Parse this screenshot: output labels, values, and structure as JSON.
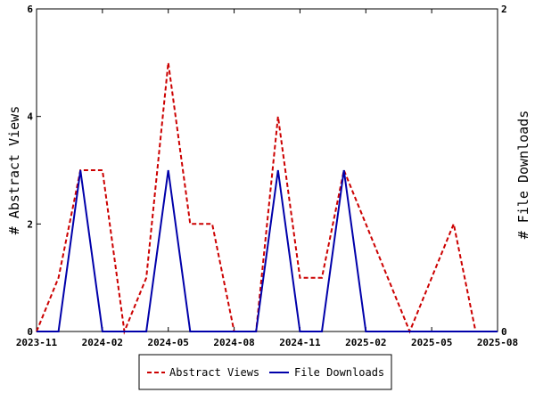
{
  "chart_data": {
    "type": "line",
    "xlabel": "",
    "ylabel_left": "# Abstract Views",
    "ylabel_right": "# File Downloads",
    "x_tick_labels": [
      "2023-11",
      "2024-02",
      "2024-05",
      "2024-08",
      "2024-11",
      "2025-02",
      "2025-05",
      "2025-08"
    ],
    "x": [
      "2023-11",
      "2023-12",
      "2024-01",
      "2024-02",
      "2024-03",
      "2024-04",
      "2024-05",
      "2024-06",
      "2024-07",
      "2024-08",
      "2024-09",
      "2024-10",
      "2024-11",
      "2024-12",
      "2025-01",
      "2025-02",
      "2025-03",
      "2025-04",
      "2025-05",
      "2025-06",
      "2025-07",
      "2025-08"
    ],
    "xlim": [
      "2023-11",
      "2025-08"
    ],
    "y_left": {
      "ylim": [
        0,
        6
      ],
      "ticks": [
        "0",
        "2",
        "4",
        "6"
      ]
    },
    "y_right": {
      "ylim": [
        0,
        2
      ],
      "ticks": [
        "0",
        "2"
      ]
    },
    "grid": false,
    "legend_position": "bottom",
    "series": [
      {
        "name": "Abstract Views",
        "axis": "left",
        "color": "#cc0000",
        "style": "dashed",
        "values": [
          0,
          1,
          3,
          3,
          0,
          1,
          5,
          2,
          2,
          0,
          0,
          4,
          1,
          1,
          3,
          2,
          1,
          0,
          1,
          2,
          0,
          0
        ]
      },
      {
        "name": "File Downloads",
        "axis": "left",
        "color": "#0000aa",
        "style": "solid",
        "values": [
          0,
          0,
          3,
          0,
          0,
          0,
          3,
          0,
          0,
          0,
          0,
          3,
          0,
          0,
          3,
          0,
          0,
          0,
          0,
          0,
          0,
          0
        ]
      }
    ]
  }
}
